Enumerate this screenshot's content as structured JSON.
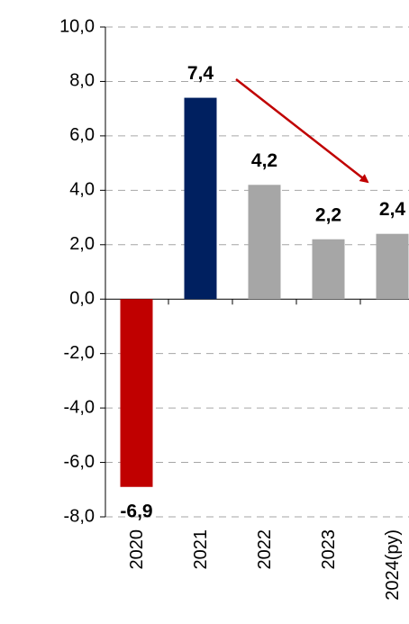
{
  "chart_data": {
    "type": "bar",
    "categories": [
      "2020",
      "2021",
      "2022",
      "2023",
      "2024(ру)"
    ],
    "values": [
      -6.9,
      7.4,
      4.2,
      2.2,
      2.4
    ],
    "value_labels": [
      "-6,9",
      "7,4",
      "4,2",
      "2,2",
      "2,4"
    ],
    "colors": [
      "#c00000",
      "#002060",
      "#a6a6a6",
      "#a6a6a6",
      "#a6a6a6"
    ],
    "ylim": [
      -8,
      10
    ],
    "yticks": [
      {
        "value": -8,
        "label": "-8,0"
      },
      {
        "value": -6,
        "label": "-6,0"
      },
      {
        "value": -4,
        "label": "-4,0"
      },
      {
        "value": -2,
        "label": "-2,0"
      },
      {
        "value": 0,
        "label": "0,0"
      },
      {
        "value": 2,
        "label": "2,0"
      },
      {
        "value": 4,
        "label": "4,0"
      },
      {
        "value": 6,
        "label": "6,0"
      },
      {
        "value": 8,
        "label": "8,0"
      },
      {
        "value": 10,
        "label": "10,0"
      }
    ],
    "grid": true
  }
}
